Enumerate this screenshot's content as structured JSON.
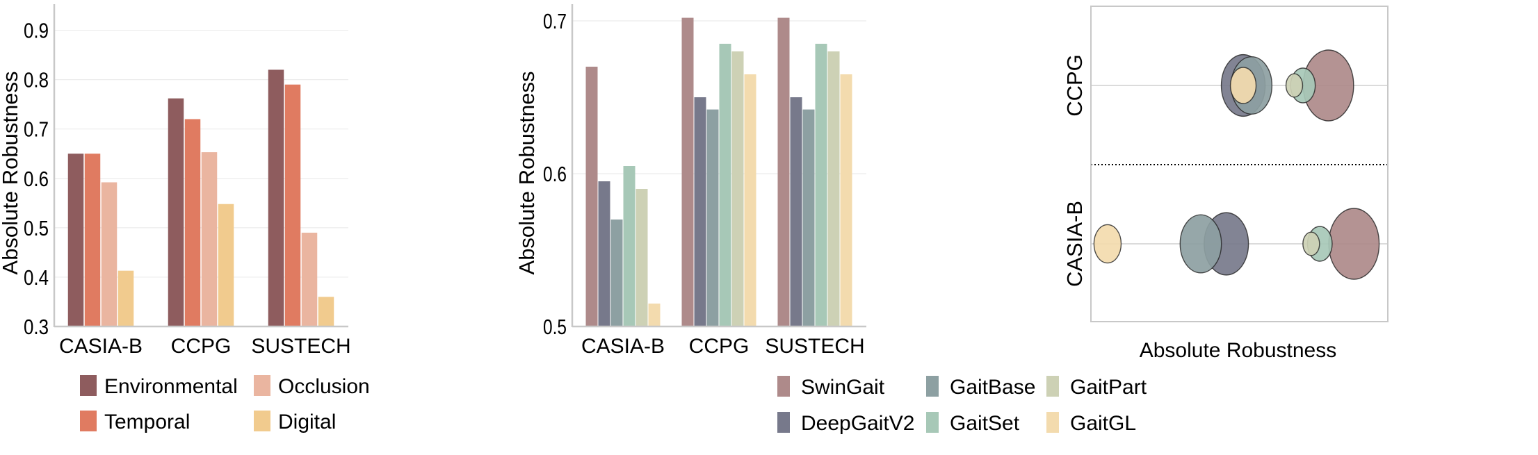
{
  "chart_data": [
    {
      "type": "bar",
      "ylabel": "Absolute Robustness",
      "ylim": [
        0.3,
        0.95
      ],
      "yticks": [
        "0.3",
        "0.4",
        "0.5",
        "0.6",
        "0.7",
        "0.8",
        "0.9"
      ],
      "grid": true,
      "categories": [
        "CASIA-B",
        "CCPG",
        "SUSTECH"
      ],
      "legend_position": "bottom",
      "series": [
        {
          "name": "Environmental",
          "color": "#8E5C5E",
          "values": [
            0.65,
            0.762,
            0.82
          ]
        },
        {
          "name": "Temporal",
          "color": "#E07B61",
          "values": [
            0.65,
            0.72,
            0.79
          ]
        },
        {
          "name": "Occlusion",
          "color": "#EAB5A0",
          "values": [
            0.592,
            0.653,
            0.49
          ]
        },
        {
          "name": "Digital",
          "color": "#F1CB8E",
          "values": [
            0.413,
            0.548,
            0.36
          ]
        }
      ]
    },
    {
      "type": "bar",
      "ylabel": "Absolute Robustness",
      "ylim": [
        0.5,
        0.71
      ],
      "yticks": [
        "0.5",
        "0.6",
        "0.7"
      ],
      "grid": true,
      "categories": [
        "CASIA-B",
        "CCPG",
        "SUSTECH"
      ],
      "legend_position": "bottom",
      "series": [
        {
          "name": "SwinGait",
          "color": "#AE8A8A",
          "values": [
            0.67,
            0.702,
            0.702
          ]
        },
        {
          "name": "DeepGaitV2",
          "color": "#77798B",
          "values": [
            0.595,
            0.65,
            0.65
          ]
        },
        {
          "name": "GaitBase",
          "color": "#8DA0A2",
          "values": [
            0.57,
            0.642,
            0.642
          ]
        },
        {
          "name": "GaitSet",
          "color": "#A7C8B7",
          "values": [
            0.605,
            0.685,
            0.685
          ]
        },
        {
          "name": "GaitPart",
          "color": "#CDD1B5",
          "values": [
            0.59,
            0.68,
            0.68
          ]
        },
        {
          "name": "GaitGL",
          "color": "#F3DBAE",
          "values": [
            0.515,
            0.665,
            0.665
          ]
        }
      ]
    },
    {
      "type": "scatter",
      "subtype": "bubble",
      "xlabel": "Absolute Robustness",
      "xticks_shown": false,
      "xlim": [
        0,
        1
      ],
      "categories": [
        "CCPG",
        "CASIA-B"
      ],
      "separator": "dotted",
      "series": [
        {
          "name": "SwinGait",
          "color": "#AE8A8A",
          "x": [
            0.8,
            0.886
          ],
          "size": [
            1.0,
            1.0
          ]
        },
        {
          "name": "DeepGaitV2",
          "color": "#77798B",
          "x": [
            0.513,
            0.456
          ],
          "size": [
            0.87,
            0.88
          ]
        },
        {
          "name": "GaitBase",
          "color": "#8DA0A2",
          "x": [
            0.541,
            0.37
          ],
          "size": [
            0.81,
            0.82
          ]
        },
        {
          "name": "GaitSet",
          "color": "#A7C8B7",
          "x": [
            0.714,
            0.771
          ],
          "size": [
            0.49,
            0.49
          ]
        },
        {
          "name": "GaitPart",
          "color": "#CDD1B5",
          "x": [
            0.685,
            0.742
          ],
          "size": [
            0.33,
            0.33
          ]
        },
        {
          "name": "GaitGL",
          "color": "#F3DBAE",
          "x": [
            0.513,
            0.056
          ],
          "size": [
            0.51,
            0.54
          ]
        }
      ]
    }
  ]
}
